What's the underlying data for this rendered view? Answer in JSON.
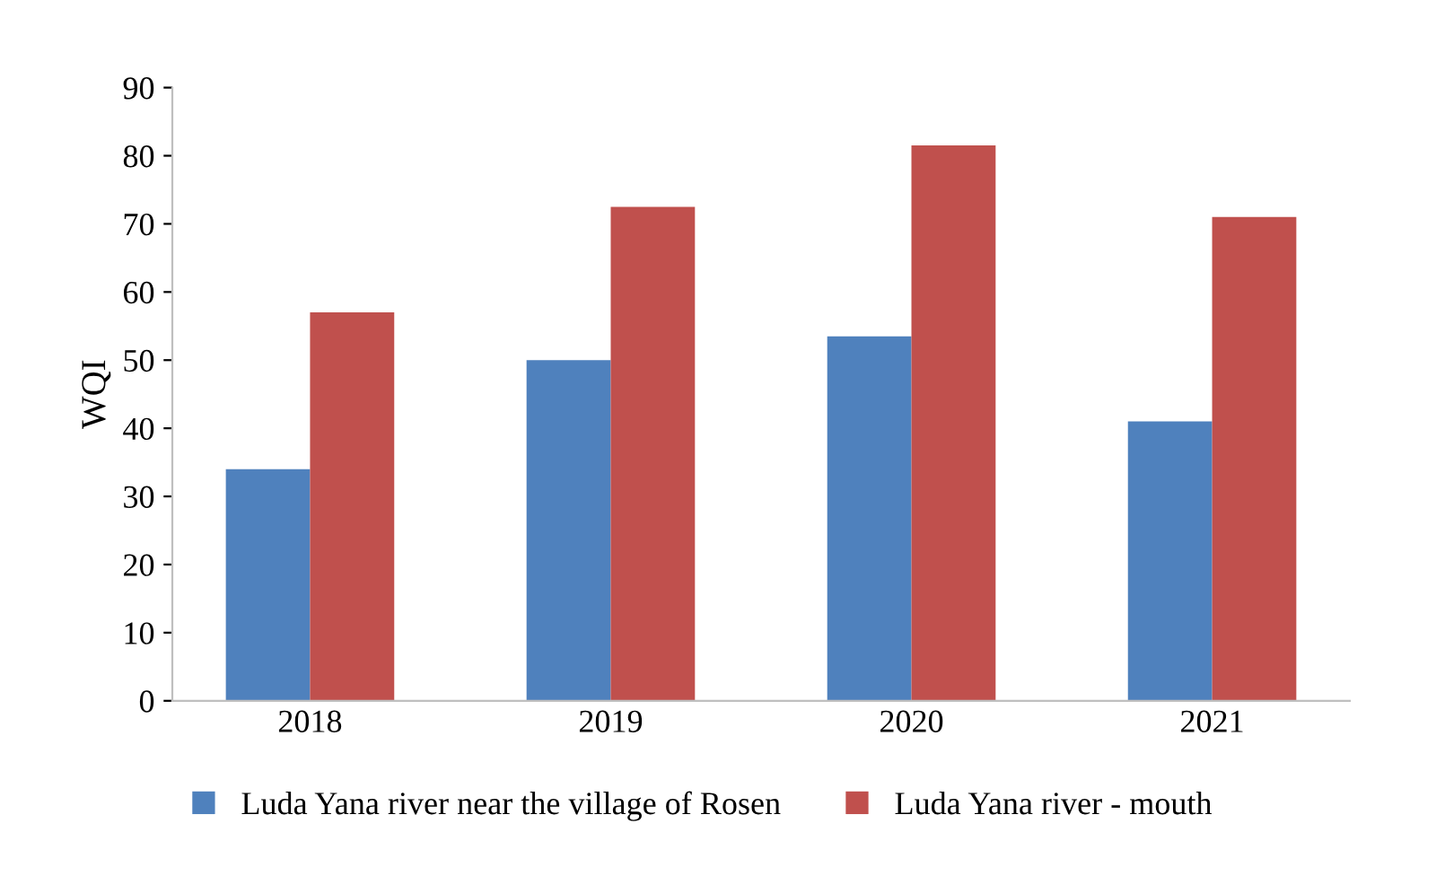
{
  "chart_data": {
    "type": "bar",
    "ylabel": "WQI",
    "categories": [
      "2018",
      "2019",
      "2020",
      "2021"
    ],
    "series": [
      {
        "name": "Luda Yana river near the village of Rosen",
        "color": "#4f81bd",
        "values": [
          34,
          50,
          53.5,
          41
        ]
      },
      {
        "name": "Luda Yana river - mouth",
        "color": "#c0504d",
        "values": [
          57,
          72.5,
          81.5,
          71
        ]
      }
    ],
    "ylim": [
      0,
      90
    ],
    "yticks": [
      0,
      10,
      20,
      30,
      40,
      50,
      60,
      70,
      80,
      90
    ],
    "grid": false,
    "legend": "bottom"
  }
}
